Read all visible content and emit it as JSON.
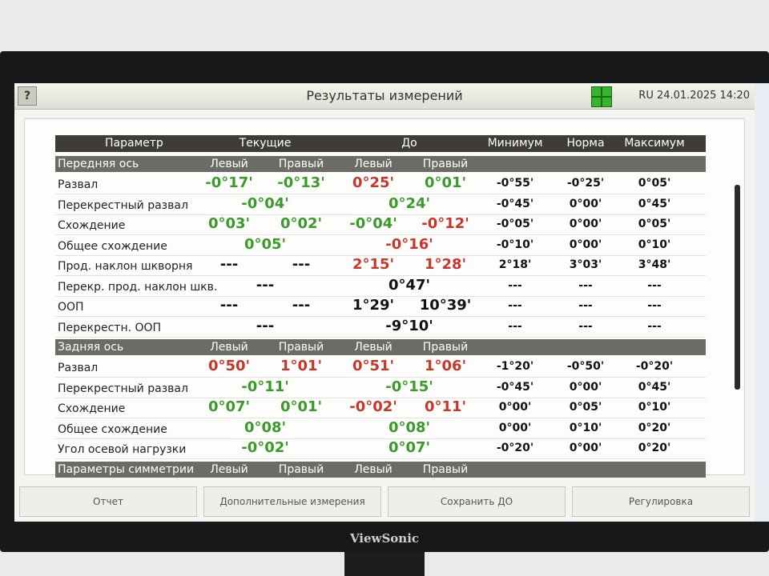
{
  "header": {
    "help": "?",
    "title": "Результаты измерений",
    "status": "RU 24.01.2025 14:20"
  },
  "table": {
    "columns": [
      "Параметр",
      "Текущие",
      "До",
      "Минимум",
      "Норма",
      "Максимум"
    ],
    "sections": [
      {
        "title": "Передняя ось",
        "sub": [
          "Левый",
          "Правый",
          "Левый",
          "Правый"
        ],
        "rows": [
          {
            "name": "Развал",
            "current": [
              {
                "text": "-0°17'",
                "color": "#3a9a2a"
              },
              {
                "text": "-0°13'",
                "color": "#3a9a2a"
              }
            ],
            "before": [
              {
                "text": "0°25'",
                "color": "#c8352a"
              },
              {
                "text": "0°01'",
                "color": "#3a9a2a"
              }
            ],
            "limits": [
              "-0°55'",
              "-0°25'",
              "0°05'"
            ]
          },
          {
            "name": "Перекрестный развал",
            "current": [
              {
                "text": "-0°04'",
                "color": "#3a9a2a"
              }
            ],
            "before": [
              {
                "text": "0°24'",
                "color": "#3a9a2a"
              }
            ],
            "limits": [
              "-0°45'",
              "0°00'",
              "0°45'"
            ]
          },
          {
            "name": "Схождение",
            "current": [
              {
                "text": "0°03'",
                "color": "#3a9a2a"
              },
              {
                "text": "0°02'",
                "color": "#3a9a2a"
              }
            ],
            "before": [
              {
                "text": "-0°04'",
                "color": "#3a9a2a"
              },
              {
                "text": "-0°12'",
                "color": "#c8352a"
              }
            ],
            "limits": [
              "-0°05'",
              "0°00'",
              "0°05'"
            ]
          },
          {
            "name": "Общее схождение",
            "current": [
              {
                "text": "0°05'",
                "color": "#3a9a2a"
              }
            ],
            "before": [
              {
                "text": "-0°16'",
                "color": "#c8352a"
              }
            ],
            "limits": [
              "-0°10'",
              "0°00'",
              "0°10'"
            ]
          },
          {
            "name": "Прод. наклон шкворня",
            "current": [
              {
                "text": "---",
                "color": "#111111"
              },
              {
                "text": "---",
                "color": "#111111"
              }
            ],
            "before": [
              {
                "text": "2°15'",
                "color": "#c8352a"
              },
              {
                "text": "1°28'",
                "color": "#c8352a"
              }
            ],
            "limits": [
              "2°18'",
              "3°03'",
              "3°48'"
            ]
          },
          {
            "name": "Перекр. прод. наклон шкв.",
            "current": [
              {
                "text": "---",
                "color": "#111111"
              }
            ],
            "before": [
              {
                "text": "0°47'",
                "color": "#111111"
              }
            ],
            "limits": [
              "---",
              "---",
              "---"
            ]
          },
          {
            "name": "ООП",
            "current": [
              {
                "text": "---",
                "color": "#111111"
              },
              {
                "text": "---",
                "color": "#111111"
              }
            ],
            "before": [
              {
                "text": "1°29'",
                "color": "#111111"
              },
              {
                "text": "10°39'",
                "color": "#111111"
              }
            ],
            "limits": [
              "---",
              "---",
              "---"
            ]
          },
          {
            "name": "Перекрестн. ООП",
            "current": [
              {
                "text": "---",
                "color": "#111111"
              }
            ],
            "before": [
              {
                "text": "-9°10'",
                "color": "#111111"
              }
            ],
            "limits": [
              "---",
              "---",
              "---"
            ]
          }
        ]
      },
      {
        "title": "Задняя ось",
        "sub": [
          "Левый",
          "Правый",
          "Левый",
          "Правый"
        ],
        "rows": [
          {
            "name": "Развал",
            "current": [
              {
                "text": "0°50'",
                "color": "#c8352a"
              },
              {
                "text": "1°01'",
                "color": "#c8352a"
              }
            ],
            "before": [
              {
                "text": "0°51'",
                "color": "#c8352a"
              },
              {
                "text": "1°06'",
                "color": "#c8352a"
              }
            ],
            "limits": [
              "-1°20'",
              "-0°50'",
              "-0°20'"
            ]
          },
          {
            "name": "Перекрестный развал",
            "current": [
              {
                "text": "-0°11'",
                "color": "#3a9a2a"
              }
            ],
            "before": [
              {
                "text": "-0°15'",
                "color": "#3a9a2a"
              }
            ],
            "limits": [
              "-0°45'",
              "0°00'",
              "0°45'"
            ]
          },
          {
            "name": "Схождение",
            "current": [
              {
                "text": "0°07'",
                "color": "#3a9a2a"
              },
              {
                "text": "0°01'",
                "color": "#3a9a2a"
              }
            ],
            "before": [
              {
                "text": "-0°02'",
                "color": "#c8352a"
              },
              {
                "text": "0°11'",
                "color": "#c8352a"
              }
            ],
            "limits": [
              "0°00'",
              "0°05'",
              "0°10'"
            ]
          },
          {
            "name": "Общее схождение",
            "current": [
              {
                "text": "0°08'",
                "color": "#3a9a2a"
              }
            ],
            "before": [
              {
                "text": "0°08'",
                "color": "#3a9a2a"
              }
            ],
            "limits": [
              "0°00'",
              "0°10'",
              "0°20'"
            ]
          },
          {
            "name": "Угол осевой нагрузки",
            "current": [
              {
                "text": "-0°02'",
                "color": "#3a9a2a"
              }
            ],
            "before": [
              {
                "text": "0°07'",
                "color": "#3a9a2a"
              }
            ],
            "limits": [
              "-0°20'",
              "0°00'",
              "0°20'"
            ]
          }
        ]
      },
      {
        "title": "Параметры симметрии",
        "sub": [
          "Левый",
          "Правый",
          "Левый",
          "Правый"
        ],
        "rows": []
      }
    ]
  },
  "buttons": [
    "Отчет",
    "Дополнительные измерения",
    "Сохранить ДО",
    "Регулировка"
  ],
  "brand": "ViewSonic"
}
